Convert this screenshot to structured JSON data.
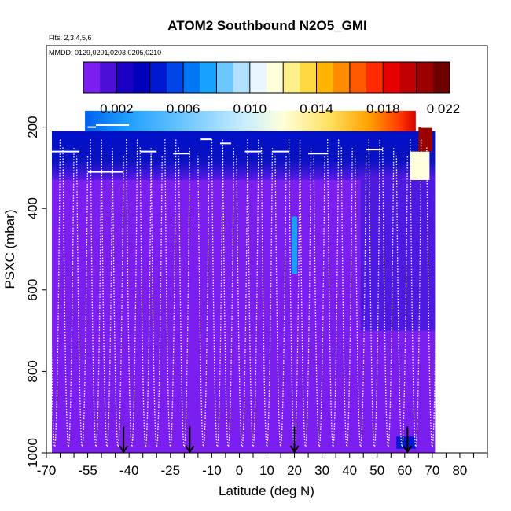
{
  "chart_data": {
    "type": "heatmap",
    "title": "ATOM2 Southbound N2O5_GMI",
    "subtitle_flights": "Flts: 2,3,4,5,6",
    "subtitle_dates": "MMDD: 0129,0201,0203,0205,0210",
    "xlabel": "Latitude (deg N)",
    "ylabel": "PSXC (mbar)",
    "xlim": [
      -70,
      90
    ],
    "ylim": [
      1000,
      0
    ],
    "x_ticks": [
      -70,
      -55,
      -40,
      -25,
      -10,
      0,
      10,
      20,
      30,
      40,
      50,
      60,
      70,
      80
    ],
    "y_ticks": [
      200,
      400,
      600,
      800,
      1000
    ],
    "colorbar": {
      "min": 0.0,
      "max": 0.022,
      "tick_values": [
        0.002,
        0.006,
        0.01,
        0.014,
        0.018,
        0.022
      ],
      "tick_labels": [
        "0.002",
        "0.006",
        "0.010",
        "0.014",
        "0.018",
        "0.022"
      ],
      "colors": [
        "#7a1ff0",
        "#4b0fd8",
        "#1a00c4",
        "#0000b8",
        "#0018d0",
        "#0046e6",
        "#0078f5",
        "#16a2ff",
        "#6cc6ff",
        "#b4e0ff",
        "#e8f6ff",
        "#ffffdc",
        "#fff08a",
        "#ffd740",
        "#ffb400",
        "#ff8c00",
        "#ff5a00",
        "#ff2a00",
        "#e60000",
        "#c00000",
        "#9a0000",
        "#6e0000"
      ]
    },
    "background_color": "#7a1ff0",
    "field_lat_range": [
      -68,
      71
    ],
    "top_band": {
      "pressure_top": 160,
      "pressure_bottom": 210,
      "lat_start": -56,
      "lat_end": 64,
      "value_start": 0.006,
      "value_end": 0.022
    },
    "upper_layer": {
      "pressure_top": 210,
      "pressure_bottom": 330,
      "value": 0.004
    },
    "highlight_cells": [
      {
        "lat_start": 19,
        "lat_end": 21,
        "p_top": 420,
        "p_bottom": 560,
        "value": 0.007
      },
      {
        "lat_start": 57,
        "lat_end": 64,
        "p_top": 960,
        "p_bottom": 990,
        "value": 0.004
      },
      {
        "lat_start": 62,
        "lat_end": 69,
        "p_top": 260,
        "p_bottom": 330,
        "value": 0.011
      },
      {
        "lat_start": 65,
        "lat_end": 70,
        "p_top": 200,
        "p_bottom": 260,
        "value": 0.02
      }
    ],
    "profile_latitudes": [
      -67,
      -62,
      -57,
      -52,
      -48,
      -44,
      -39,
      -34,
      -30,
      -25,
      -20,
      -13,
      -8,
      -4,
      1,
      5,
      10,
      15,
      20,
      24,
      29,
      34,
      39,
      44,
      49,
      54,
      59,
      64,
      70
    ],
    "surface_arrows_lat": [
      -42,
      -18,
      20,
      61
    ],
    "series": [
      {
        "name": "flight track",
        "color": "#ffffff",
        "style": "solid"
      },
      {
        "name": "profiles",
        "color": "#ffffff",
        "style": "dotted"
      }
    ]
  }
}
